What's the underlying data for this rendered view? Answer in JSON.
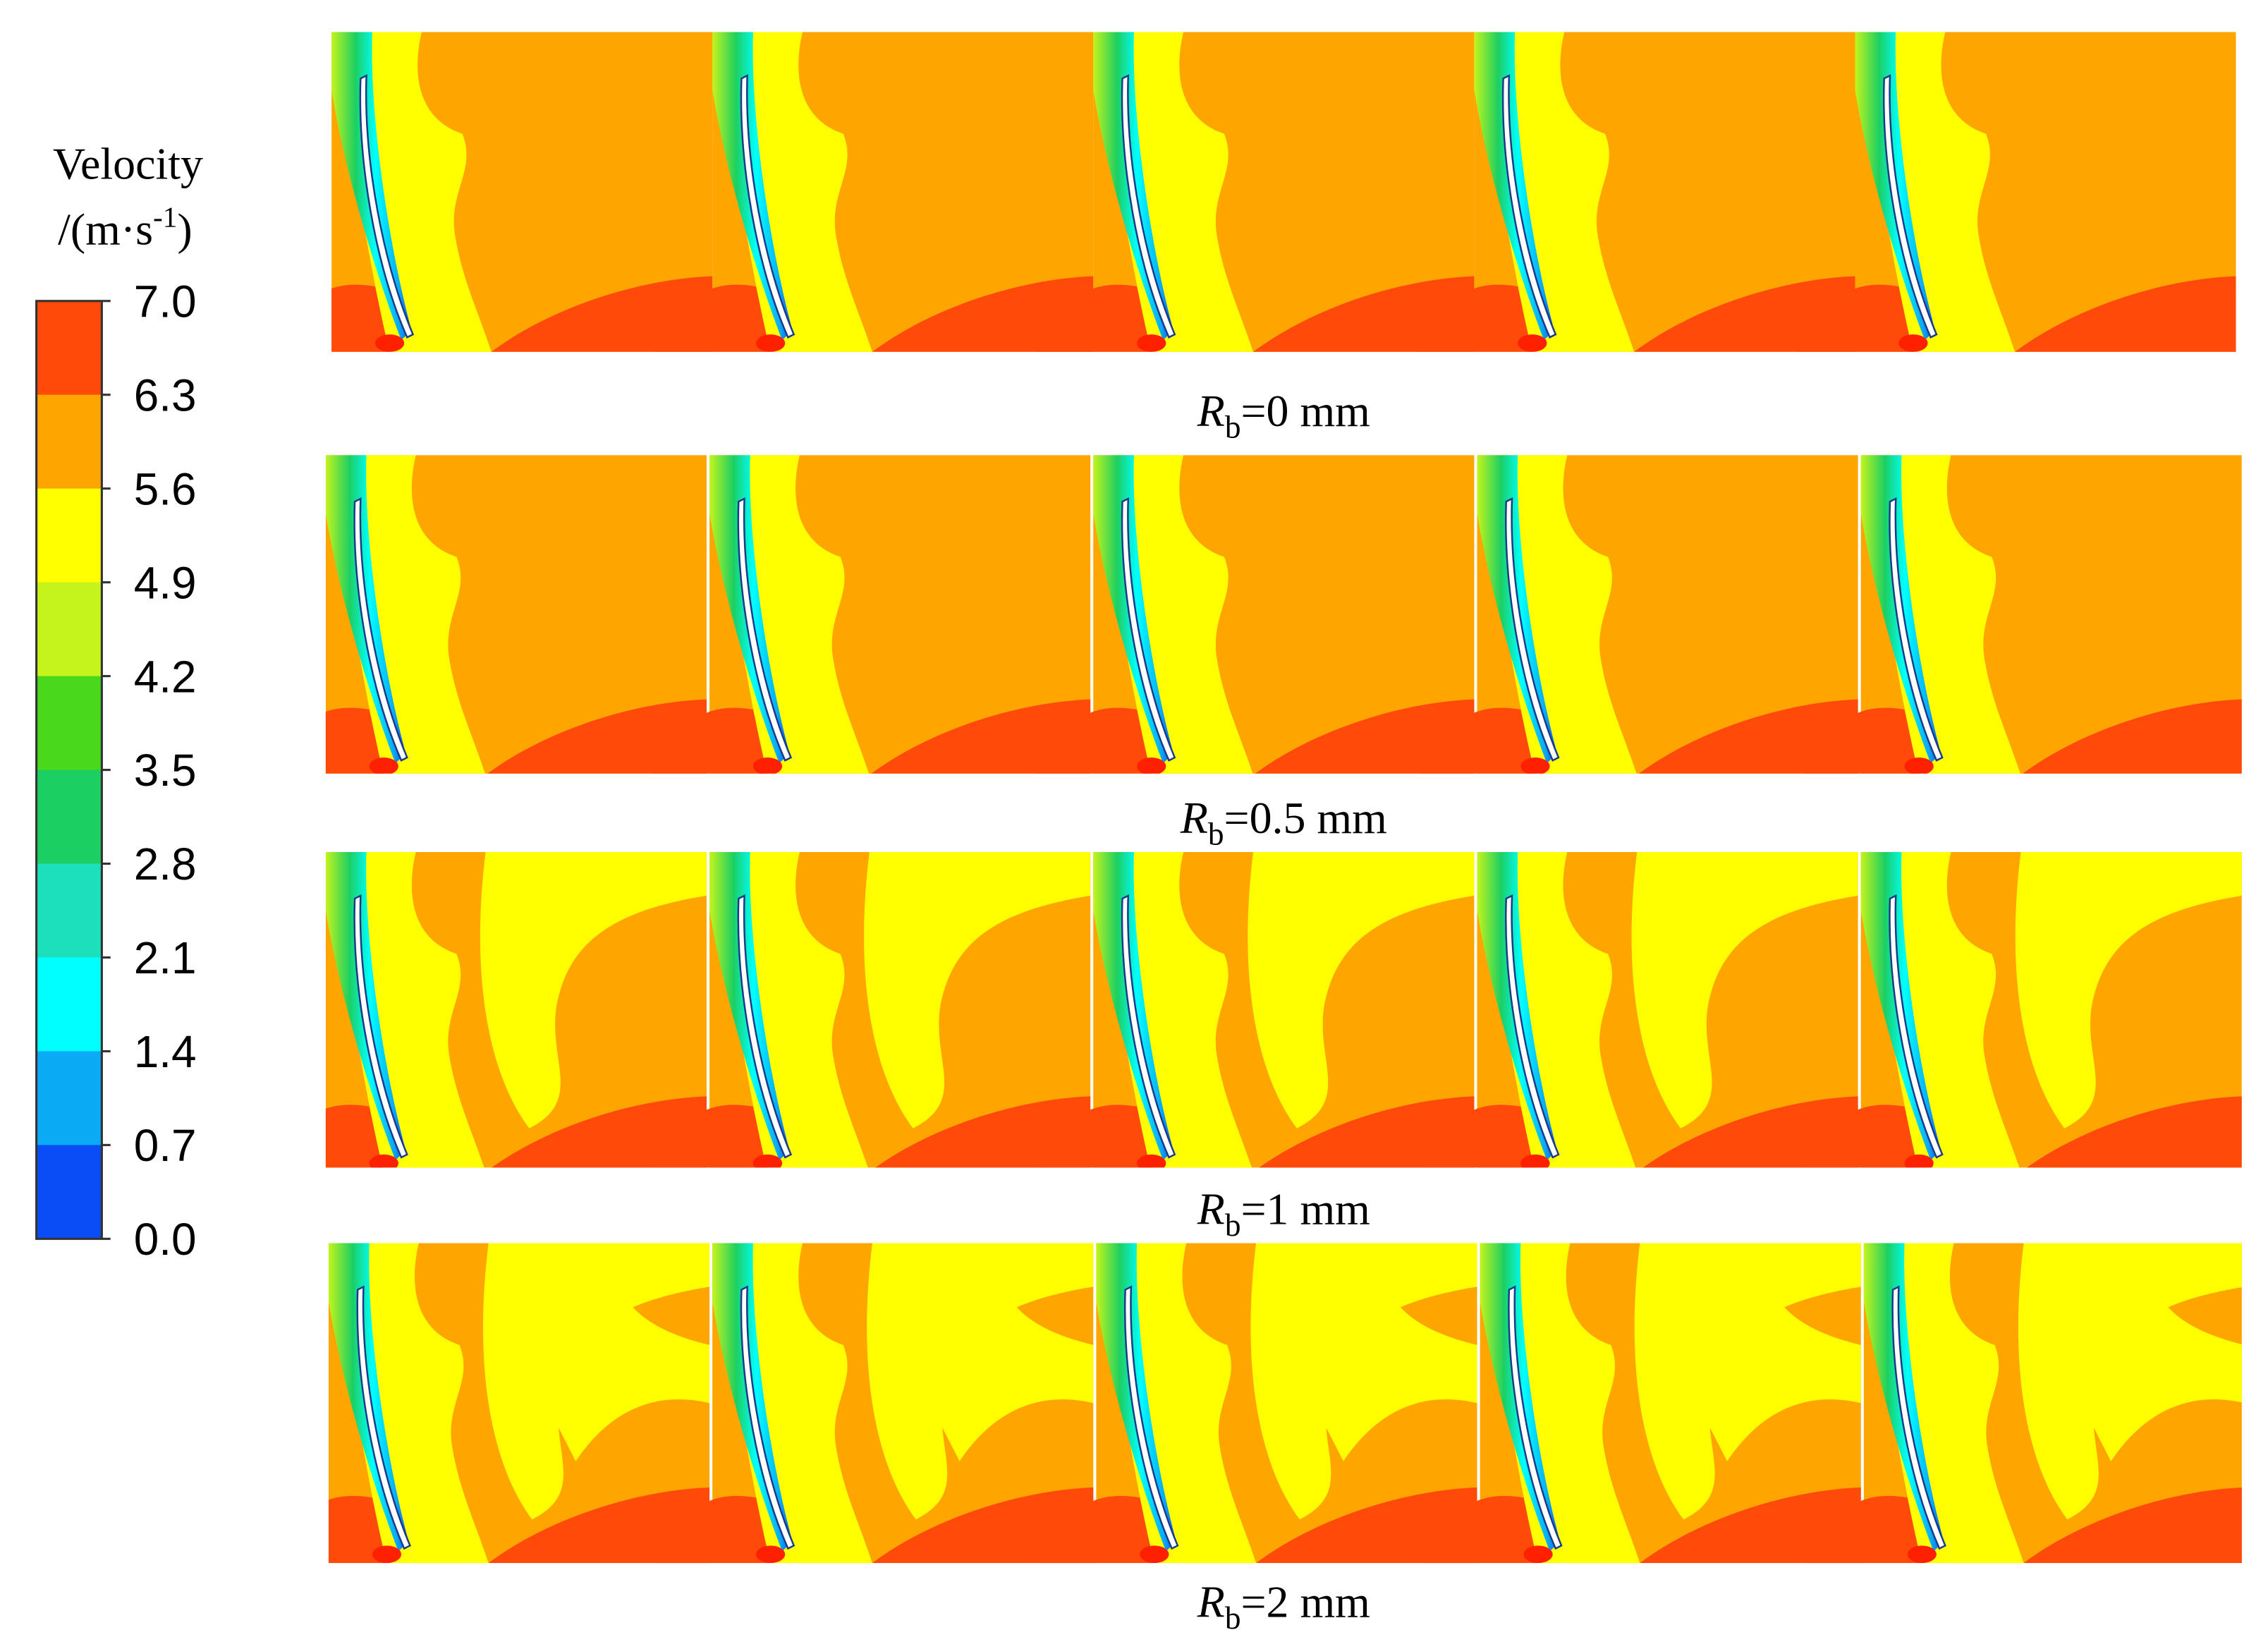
{
  "colorbar": {
    "title": "Velocity",
    "unit": {
      "prefix": "/(m·s",
      "superscript": "-1",
      "suffix": ")"
    },
    "ticks": [
      "7.0",
      "6.3",
      "5.6",
      "4.9",
      "4.2",
      "3.5",
      "2.8",
      "2.1",
      "1.4",
      "0.7",
      "0.0"
    ],
    "colors": [
      "#ff4a0a",
      "#ffa500",
      "#ffff00",
      "#c4f41c",
      "#4ad81c",
      "#1ccf62",
      "#1ce0bc",
      "#00ffff",
      "#0aaaf5",
      "#0a4cf5"
    ]
  },
  "panels": [
    {
      "caption": {
        "symbol": "R",
        "subscript": "b",
        "text": "=0 mm"
      }
    },
    {
      "caption": {
        "symbol": "R",
        "subscript": "b",
        "text": "=0.5 mm"
      }
    },
    {
      "caption": {
        "symbol": "R",
        "subscript": "b",
        "text": "=1 mm"
      }
    },
    {
      "caption": {
        "symbol": "R",
        "subscript": "b",
        "text": "=2 mm"
      }
    }
  ]
}
